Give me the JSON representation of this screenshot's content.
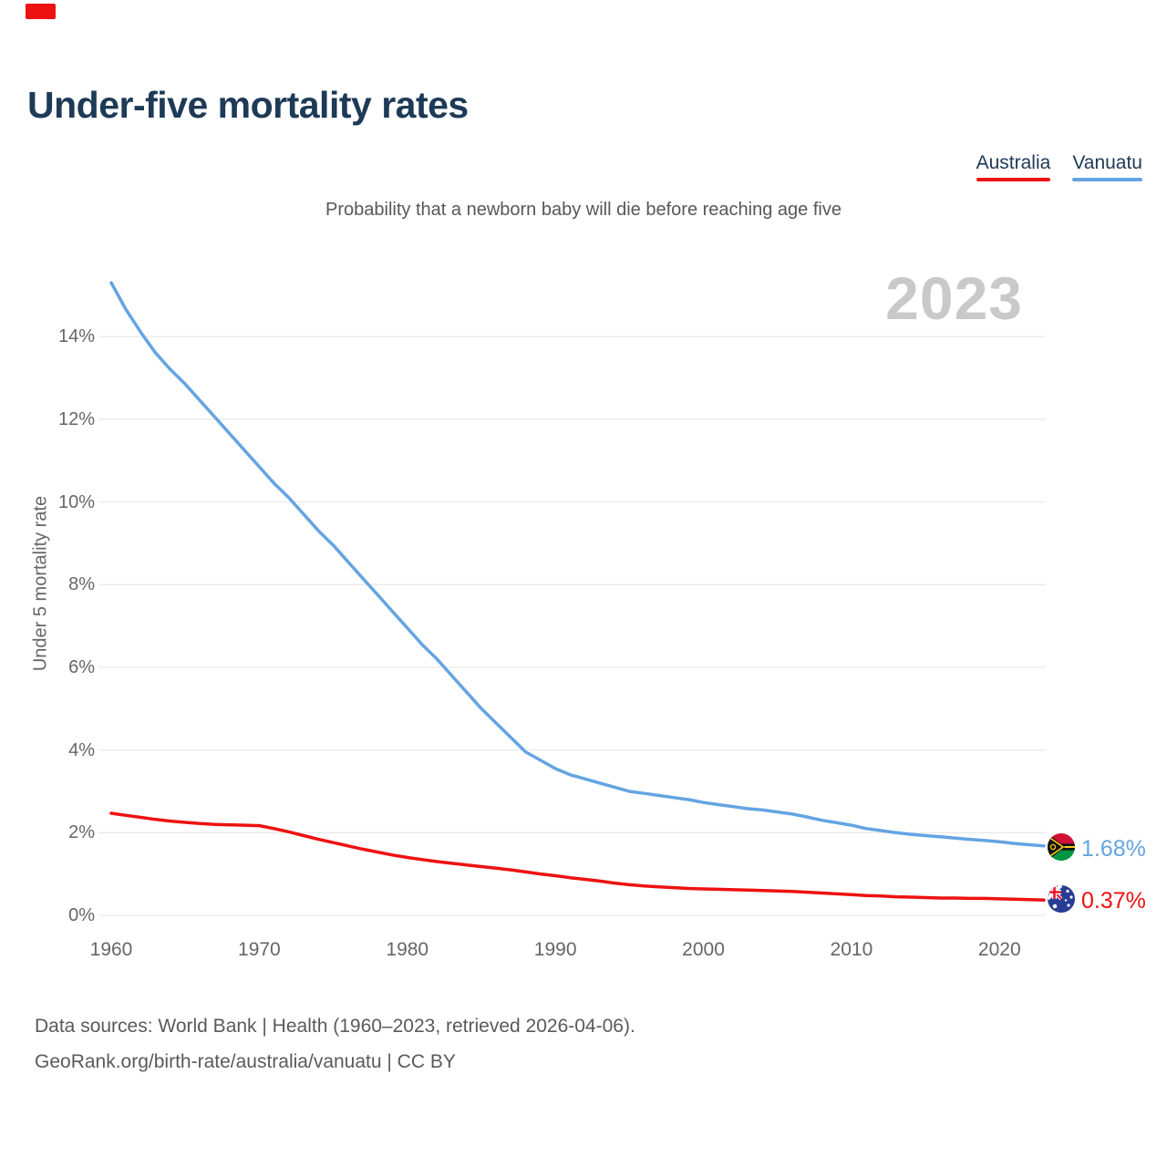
{
  "corner_mark_color": "#ee1111",
  "header": {
    "title": "Under-five mortality rates",
    "subtitle": "Probability that a newborn baby will die before reaching age five"
  },
  "legend": [
    {
      "label": "Australia",
      "color": "#ee1111"
    },
    {
      "label": "Vanuatu",
      "color": "#64a4e2"
    }
  ],
  "watermark": "2023",
  "chart_data": {
    "type": "line",
    "title": "Under-five mortality rates",
    "subtitle": "Probability that a newborn baby will die before reaching age five",
    "xlabel": "",
    "ylabel": "Under 5 mortality rate",
    "xlim": [
      1960,
      2023
    ],
    "ylim": [
      0,
      15.5
    ],
    "grid": "horizontal",
    "legend_position": "top-right",
    "x_ticks": [
      1960,
      1970,
      1980,
      1990,
      2000,
      2010,
      2020
    ],
    "y_ticks": [
      {
        "value": 0,
        "label": "0%"
      },
      {
        "value": 2,
        "label": "2%"
      },
      {
        "value": 4,
        "label": "4%"
      },
      {
        "value": 6,
        "label": "6%"
      },
      {
        "value": 8,
        "label": "8%"
      },
      {
        "value": 10,
        "label": "10%"
      },
      {
        "value": 12,
        "label": "12%"
      },
      {
        "value": 14,
        "label": "14%"
      }
    ],
    "x": [
      1960,
      1961,
      1962,
      1963,
      1964,
      1965,
      1966,
      1967,
      1968,
      1969,
      1970,
      1971,
      1972,
      1973,
      1974,
      1975,
      1976,
      1977,
      1978,
      1979,
      1980,
      1981,
      1982,
      1983,
      1984,
      1985,
      1986,
      1987,
      1988,
      1989,
      1990,
      1991,
      1992,
      1993,
      1994,
      1995,
      1996,
      1997,
      1998,
      1999,
      2000,
      2001,
      2002,
      2003,
      2004,
      2005,
      2006,
      2007,
      2008,
      2009,
      2010,
      2011,
      2012,
      2013,
      2014,
      2015,
      2016,
      2017,
      2018,
      2019,
      2020,
      2021,
      2022,
      2023
    ],
    "series": [
      {
        "name": "Australia",
        "color": "#ee1111",
        "end_label": "0.37%",
        "unit": "%",
        "values": [
          2.47,
          2.42,
          2.37,
          2.32,
          2.28,
          2.25,
          2.22,
          2.2,
          2.19,
          2.18,
          2.17,
          2.1,
          2.02,
          1.93,
          1.84,
          1.76,
          1.68,
          1.6,
          1.53,
          1.46,
          1.4,
          1.35,
          1.3,
          1.26,
          1.22,
          1.18,
          1.14,
          1.1,
          1.05,
          1.0,
          0.96,
          0.91,
          0.87,
          0.83,
          0.78,
          0.74,
          0.71,
          0.69,
          0.67,
          0.65,
          0.64,
          0.63,
          0.62,
          0.61,
          0.6,
          0.59,
          0.58,
          0.56,
          0.54,
          0.52,
          0.5,
          0.48,
          0.47,
          0.45,
          0.44,
          0.43,
          0.42,
          0.42,
          0.41,
          0.41,
          0.4,
          0.39,
          0.38,
          0.37
        ]
      },
      {
        "name": "Vanuatu",
        "color": "#64a4e2",
        "end_label": "1.68%",
        "unit": "%",
        "values": [
          15.3,
          14.65,
          14.1,
          13.6,
          13.2,
          12.85,
          12.45,
          12.05,
          11.65,
          11.25,
          10.85,
          10.45,
          10.1,
          9.7,
          9.3,
          8.95,
          8.55,
          8.15,
          7.75,
          7.35,
          6.95,
          6.55,
          6.2,
          5.8,
          5.4,
          5.0,
          4.65,
          4.3,
          3.95,
          3.75,
          3.55,
          3.4,
          3.3,
          3.2,
          3.1,
          3.0,
          2.95,
          2.9,
          2.85,
          2.8,
          2.73,
          2.68,
          2.63,
          2.58,
          2.55,
          2.5,
          2.45,
          2.38,
          2.3,
          2.24,
          2.18,
          2.1,
          2.05,
          2.0,
          1.96,
          1.93,
          1.9,
          1.87,
          1.84,
          1.81,
          1.78,
          1.74,
          1.71,
          1.68
        ]
      }
    ]
  },
  "footer": {
    "line1": "Data sources: World Bank | Health (1960–2023, retrieved 2026-04-06).",
    "line2": "GeoRank.org/birth-rate/australia/vanuatu | CC BY"
  }
}
